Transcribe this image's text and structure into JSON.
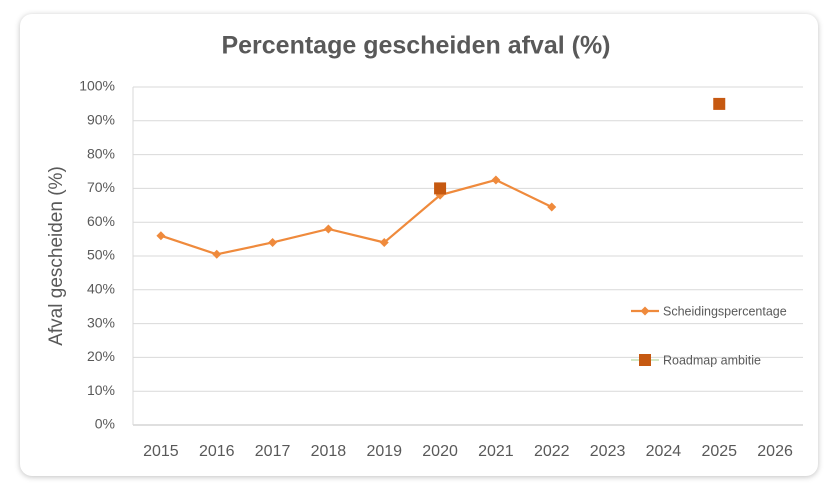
{
  "chart_data": {
    "type": "line",
    "title": "Percentage gescheiden afval (%)",
    "y_label": "Afval gescheiden (%)",
    "categories": [
      "2015",
      "2016",
      "2017",
      "2018",
      "2019",
      "2020",
      "2021",
      "2022",
      "2023",
      "2024",
      "2025",
      "2026"
    ],
    "series": [
      {
        "name": "Scheidingspercentage",
        "color": "#ef8a3c",
        "marker": "diamond",
        "line": true,
        "values": [
          56,
          50.5,
          54,
          58,
          54,
          68,
          72.5,
          64.5,
          null,
          null,
          null,
          null
        ]
      },
      {
        "name": "Roadmap ambitie",
        "color": "#c65911",
        "marker": "square",
        "line": false,
        "values": [
          null,
          null,
          null,
          null,
          null,
          70,
          null,
          null,
          null,
          null,
          95,
          null
        ]
      }
    ],
    "ylim": [
      0,
      100
    ],
    "yticks": [
      {
        "value": 0,
        "label": "0%"
      },
      {
        "value": 10,
        "label": "10%"
      },
      {
        "value": 20,
        "label": "20%"
      },
      {
        "value": 30,
        "label": "30%"
      },
      {
        "value": 40,
        "label": "40%"
      },
      {
        "value": 50,
        "label": "50%"
      },
      {
        "value": 60,
        "label": "60%"
      },
      {
        "value": 70,
        "label": "70%"
      },
      {
        "value": 80,
        "label": "80%"
      },
      {
        "value": 90,
        "label": "90%"
      },
      {
        "value": 100,
        "label": "100%"
      }
    ],
    "grid": true,
    "legend": "right"
  }
}
